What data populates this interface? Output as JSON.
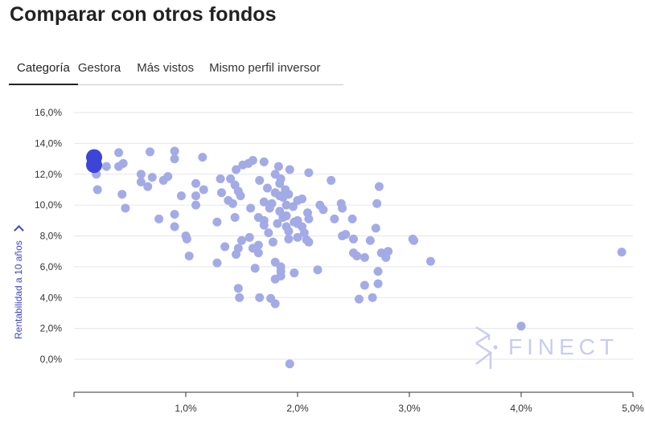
{
  "page": {
    "title": "Comparar con otros fondos"
  },
  "tabs": [
    {
      "label": "Categoría",
      "active": true
    },
    {
      "label": "Gestora",
      "active": false
    },
    {
      "label": "Más vistos",
      "active": false
    },
    {
      "label": "Mismo perfil inversor",
      "active": false
    }
  ],
  "watermark": {
    "text": "FINECT"
  },
  "colors": {
    "point": "#a3abe6",
    "highlight": "#3d45d8",
    "grid": "#e6e6e6",
    "axis": "#333333",
    "watermark": "#c8ccf2"
  },
  "chart_data": {
    "type": "scatter",
    "title": "",
    "xlabel": "",
    "ylabel": "Rentabilidad a 10 años",
    "xlim": [
      0,
      5.0
    ],
    "ylim": [
      -2,
      16
    ],
    "grid": true,
    "x_ticks": [
      1,
      2,
      3,
      4,
      5
    ],
    "x_tick_labels": [
      "1,0%",
      "2,0%",
      "3,0%",
      "4,0%",
      "5,0%"
    ],
    "y_ticks": [
      0,
      2,
      4,
      6,
      8,
      10,
      12,
      14,
      16
    ],
    "y_tick_labels": [
      "0,0%",
      "2,0%",
      "4,0%",
      "6,0%",
      "8,0%",
      "10,0%",
      "12,0%",
      "14,0%",
      "16,0%"
    ],
    "highlight": [
      {
        "x": 0.18,
        "y": 13.1
      },
      {
        "x": 0.18,
        "y": 12.6
      }
    ],
    "points": [
      [
        0.2,
        12.0
      ],
      [
        0.21,
        11.0
      ],
      [
        0.29,
        12.5
      ],
      [
        0.4,
        13.4
      ],
      [
        0.4,
        12.5
      ],
      [
        0.44,
        12.7
      ],
      [
        0.43,
        10.7
      ],
      [
        0.46,
        9.8
      ],
      [
        0.6,
        12.0
      ],
      [
        0.6,
        11.5
      ],
      [
        0.68,
        13.45
      ],
      [
        0.7,
        11.8
      ],
      [
        0.66,
        11.2
      ],
      [
        0.76,
        9.1
      ],
      [
        0.8,
        11.6
      ],
      [
        0.84,
        11.85
      ],
      [
        0.9,
        13.5
      ],
      [
        0.9,
        13.0
      ],
      [
        0.9,
        9.4
      ],
      [
        0.9,
        8.6
      ],
      [
        0.96,
        10.6
      ],
      [
        1.0,
        8.0
      ],
      [
        1.01,
        7.8
      ],
      [
        1.03,
        6.7
      ],
      [
        1.09,
        11.4
      ],
      [
        1.09,
        10.6
      ],
      [
        1.09,
        10.0
      ],
      [
        1.15,
        13.1
      ],
      [
        1.16,
        11.0
      ],
      [
        1.28,
        8.9
      ],
      [
        1.28,
        6.25
      ],
      [
        1.31,
        11.7
      ],
      [
        1.32,
        10.8
      ],
      [
        1.35,
        7.3
      ],
      [
        1.38,
        10.3
      ],
      [
        1.4,
        11.7
      ],
      [
        1.42,
        10.1
      ],
      [
        1.44,
        11.3
      ],
      [
        1.44,
        9.2
      ],
      [
        1.45,
        12.3
      ],
      [
        1.47,
        10.9
      ],
      [
        1.49,
        10.6
      ],
      [
        1.47,
        7.2
      ],
      [
        1.45,
        6.8
      ],
      [
        1.47,
        4.6
      ],
      [
        1.48,
        4.0
      ],
      [
        1.51,
        12.6
      ],
      [
        1.5,
        7.7
      ],
      [
        1.56,
        12.7
      ],
      [
        1.58,
        9.8
      ],
      [
        1.6,
        12.9
      ],
      [
        1.6,
        7.2
      ],
      [
        1.62,
        5.9
      ],
      [
        1.57,
        7.9
      ],
      [
        1.66,
        11.6
      ],
      [
        1.65,
        9.2
      ],
      [
        1.65,
        6.9
      ],
      [
        1.65,
        7.4
      ],
      [
        1.66,
        4.0
      ],
      [
        1.7,
        12.8
      ],
      [
        1.7,
        10.2
      ],
      [
        1.7,
        9.0
      ],
      [
        1.7,
        8.7
      ],
      [
        1.73,
        11.1
      ],
      [
        1.74,
        8.2
      ],
      [
        1.75,
        9.8
      ],
      [
        1.77,
        10.1
      ],
      [
        1.76,
        3.95
      ],
      [
        1.8,
        12.0
      ],
      [
        1.8,
        10.8
      ],
      [
        1.78,
        7.6
      ],
      [
        1.8,
        6.3
      ],
      [
        1.8,
        3.6
      ],
      [
        1.8,
        5.2
      ],
      [
        1.83,
        12.5
      ],
      [
        1.82,
        8.8
      ],
      [
        1.84,
        11.4
      ],
      [
        1.85,
        11.7
      ],
      [
        1.84,
        10.6
      ],
      [
        1.84,
        9.6
      ],
      [
        1.87,
        10.5
      ],
      [
        1.85,
        6.0
      ],
      [
        1.85,
        5.7
      ],
      [
        1.85,
        5.4
      ],
      [
        1.87,
        9.2
      ],
      [
        1.89,
        11.0
      ],
      [
        1.9,
        10.0
      ],
      [
        1.9,
        9.3
      ],
      [
        1.9,
        8.6
      ],
      [
        1.93,
        12.3
      ],
      [
        1.92,
        10.7
      ],
      [
        1.92,
        8.3
      ],
      [
        1.92,
        7.8
      ],
      [
        1.93,
        -0.3
      ],
      [
        1.96,
        9.9
      ],
      [
        1.97,
        8.9
      ],
      [
        1.97,
        5.6
      ],
      [
        2.0,
        10.3
      ],
      [
        2.0,
        9.0
      ],
      [
        2.0,
        8.8
      ],
      [
        2.0,
        7.9
      ],
      [
        2.04,
        10.4
      ],
      [
        2.04,
        8.6
      ],
      [
        2.06,
        8.2
      ],
      [
        2.08,
        7.75
      ],
      [
        2.09,
        9.5
      ],
      [
        2.1,
        12.1
      ],
      [
        2.1,
        9.1
      ],
      [
        2.1,
        7.6
      ],
      [
        2.18,
        5.8
      ],
      [
        2.2,
        10.0
      ],
      [
        2.23,
        9.7
      ],
      [
        2.3,
        11.6
      ],
      [
        2.33,
        9.1
      ],
      [
        2.39,
        10.1
      ],
      [
        2.4,
        9.8
      ],
      [
        2.4,
        8.0
      ],
      [
        2.43,
        8.1
      ],
      [
        2.49,
        9.1
      ],
      [
        2.5,
        7.8
      ],
      [
        2.5,
        6.9
      ],
      [
        2.53,
        6.7
      ],
      [
        2.55,
        3.9
      ],
      [
        2.6,
        4.8
      ],
      [
        2.6,
        6.6
      ],
      [
        2.65,
        7.7
      ],
      [
        2.67,
        4.0
      ],
      [
        2.7,
        8.5
      ],
      [
        2.71,
        10.1
      ],
      [
        2.73,
        11.2
      ],
      [
        2.72,
        4.9
      ],
      [
        2.72,
        5.7
      ],
      [
        2.75,
        6.9
      ],
      [
        2.79,
        6.6
      ],
      [
        2.81,
        7.0
      ],
      [
        3.03,
        7.8
      ],
      [
        3.04,
        7.7
      ],
      [
        3.19,
        6.35
      ],
      [
        4.0,
        2.15
      ],
      [
        4.9,
        6.95
      ]
    ]
  }
}
